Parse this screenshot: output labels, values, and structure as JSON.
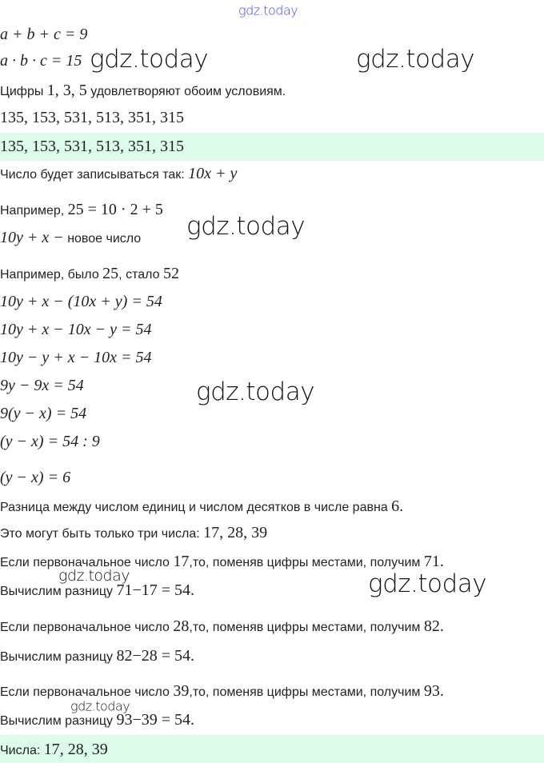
{
  "watermarks": {
    "top": "gdz.today",
    "mark": "gdz.today"
  },
  "lines": [
    [
      {
        "t": "a + b + c = 9",
        "m": "i"
      }
    ],
    [
      {
        "t": "a · b · c = 15",
        "m": "i"
      }
    ],
    [
      {
        "t": "Цифры "
      },
      {
        "t": "1,  3,  5",
        "m": "r"
      },
      {
        "t": " удовлетворяют обоим условиям."
      }
    ],
    [
      {
        "t": "135,  153,  531,  513,  351,  315",
        "m": "r"
      }
    ],
    [
      {
        "t": "135,  153,  531,  513,  351,  315",
        "m": "r"
      }
    ],
    [
      {
        "t": "Число будет записываться так: "
      },
      {
        "t": "10x + y",
        "m": "i"
      }
    ],
    [
      {
        "t": "Например, "
      },
      {
        "t": "25 = 10 · 2 + 5",
        "m": "r"
      }
    ],
    [
      {
        "t": "10y + x −",
        "m": "i"
      },
      {
        "t": " новое число"
      }
    ],
    [
      {
        "t": "Например, было "
      },
      {
        "t": "25",
        "m": "r"
      },
      {
        "t": ", стало "
      },
      {
        "t": "52",
        "m": "r"
      }
    ],
    [
      {
        "t": "10y + x − (10x + y) = 54",
        "m": "i"
      }
    ],
    [
      {
        "t": "10y + x − 10x − y = 54",
        "m": "i"
      }
    ],
    [
      {
        "t": "10y − y + x − 10x = 54",
        "m": "i"
      }
    ],
    [
      {
        "t": "9y − 9x = 54",
        "m": "i"
      }
    ],
    [
      {
        "t": "9(y − x) = 54",
        "m": "i"
      }
    ],
    [
      {
        "t": "(y − x) = 54 : 9",
        "m": "i"
      }
    ],
    [
      {
        "t": "(y − x) = 6",
        "m": "i"
      }
    ],
    [
      {
        "t": "Разница между числом единиц и числом десятков в числе равна "
      },
      {
        "t": "6.",
        "m": "r"
      }
    ],
    [
      {
        "t": "Это могут быть только три числа: "
      },
      {
        "t": "17, 28, 39",
        "m": "r"
      }
    ],
    [
      {
        "t": "Если первоначальное число "
      },
      {
        "t": "17",
        "m": "r"
      },
      {
        "t": ",то, поменяв цифры местами, получим "
      },
      {
        "t": "71.",
        "m": "r"
      }
    ],
    [
      {
        "t": "Вычислим разницу "
      },
      {
        "t": "71−17 = 54.",
        "m": "r"
      }
    ],
    [
      {
        "t": "Если первоначальное число "
      },
      {
        "t": "28",
        "m": "r"
      },
      {
        "t": ",то, поменяв цифры местами, получим "
      },
      {
        "t": "82.",
        "m": "r"
      }
    ],
    [
      {
        "t": "Вычислим разницу "
      },
      {
        "t": "82−28 = 54.",
        "m": "r"
      }
    ],
    [
      {
        "t": "Если первоначальное число "
      },
      {
        "t": "39",
        "m": "r"
      },
      {
        "t": ",то, поменяв цифры местами, получим "
      },
      {
        "t": "93.",
        "m": "r"
      }
    ],
    [
      {
        "t": "Вычислим разницу "
      },
      {
        "t": "93−39 = 54.",
        "m": "r"
      }
    ],
    [
      {
        "t": "Числа: "
      },
      {
        "t": "17, 28, 39",
        "m": "r"
      }
    ]
  ],
  "highlight_color": "#dcfbea"
}
